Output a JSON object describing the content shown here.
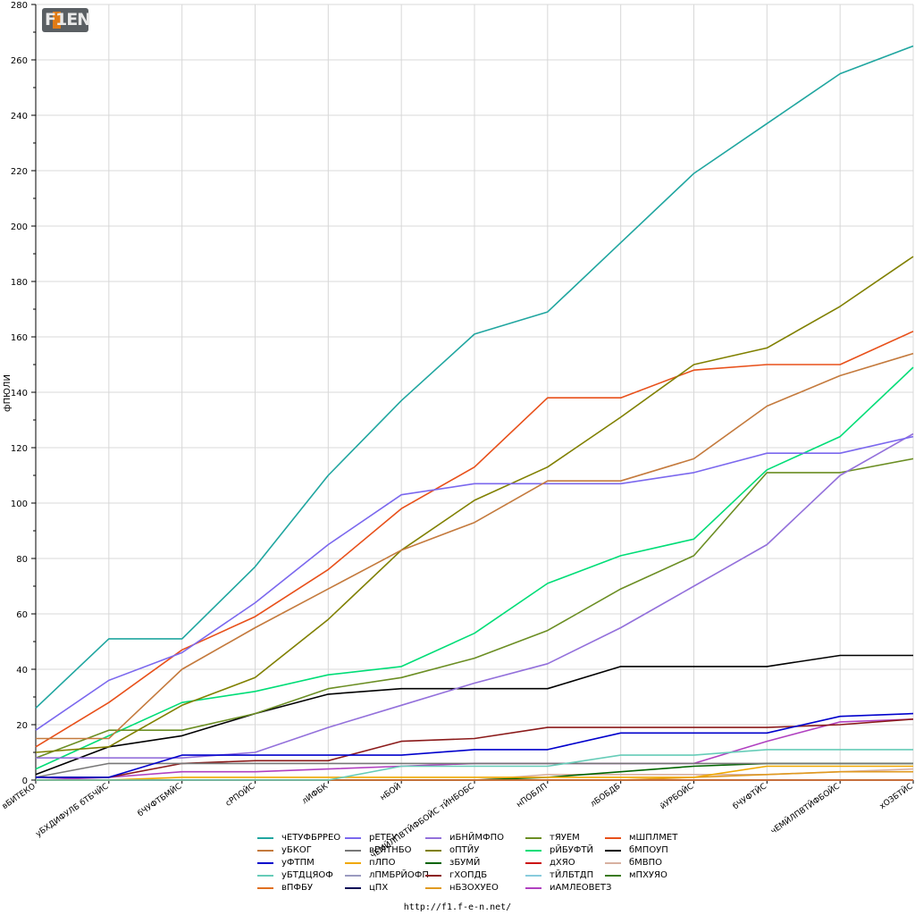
{
  "logo_text": "F1EN",
  "url": "http://f1.f-e-n.net/",
  "chart_data": {
    "type": "line",
    "title": "",
    "xlabel": "",
    "ylabel": "фПЮЛИ",
    "ylim": [
      0,
      280
    ],
    "yticks": [
      0,
      20,
      40,
      60,
      80,
      100,
      120,
      140,
      160,
      180,
      200,
      220,
      240,
      260,
      280
    ],
    "grid": true,
    "categories": [
      "вБИТЕКО",
      "уБХДИФУЛБ бТБЧЙС",
      "бЧУФТБМЙС",
      "сРПОЙС",
      "лИФБК",
      "нБОЙ",
      "чЕМЙЛПВТЙФБОЙС тЙНБОБС",
      "нПОБЛП",
      "лБОБДБ",
      "йУРБОЙС",
      "бЧУФТЙС",
      "чЕМЙЛПВТЙФБОЙС",
      "хОЗБТЙС"
    ],
    "legend_position": "bottom",
    "series": [
      {
        "name": "чЕТУФБРРЕО",
        "color": "#20a6a0",
        "values": [
          26,
          51,
          51,
          77,
          110,
          137,
          161,
          169,
          194,
          219,
          237,
          255,
          265
        ]
      },
      {
        "name": "уБКОГ",
        "color": "#c47a3d",
        "values": [
          15,
          15,
          40,
          55,
          69,
          83,
          93,
          108,
          108,
          116,
          135,
          146,
          154
        ]
      },
      {
        "name": "уФТПМ",
        "color": "#0000cc",
        "values": [
          1,
          1,
          9,
          9,
          9,
          9,
          11,
          11,
          17,
          17,
          17,
          23,
          24
        ]
      },
      {
        "name": "уБТДЦЯОФ",
        "color": "#66ccb8",
        "values": [
          0,
          0,
          0,
          0,
          0,
          5,
          5,
          5,
          9,
          9,
          11,
          11,
          11
        ]
      },
      {
        "name": "вПФБУ",
        "color": "#e07020",
        "values": [
          0,
          0,
          0,
          0,
          0,
          0,
          0,
          0,
          0,
          0,
          0,
          0,
          0
        ]
      },
      {
        "name": "рЕТЕУ",
        "color": "#7b68ee",
        "values": [
          18,
          36,
          46,
          64,
          85,
          103,
          107,
          107,
          107,
          111,
          118,
          118,
          124
        ]
      },
      {
        "name": "вЕЯТНБО",
        "color": "#777777",
        "values": [
          1,
          6,
          6,
          6,
          6,
          6,
          6,
          6,
          6,
          6,
          6,
          6,
          6
        ]
      },
      {
        "name": "пЛПО",
        "color": "#f0a800",
        "values": [
          0,
          0,
          1,
          1,
          1,
          1,
          1,
          1,
          1,
          1,
          5,
          5,
          5
        ]
      },
      {
        "name": "лПМБРЙОФП",
        "color": "#9a9ac0",
        "values": [
          0,
          0,
          0,
          0,
          0,
          0,
          0,
          0,
          0,
          0,
          0,
          0,
          0
        ]
      },
      {
        "name": "цПХ",
        "color": "#000055",
        "values": [
          0,
          0,
          0,
          0,
          0,
          0,
          0,
          0,
          0,
          0,
          0,
          0,
          0
        ]
      },
      {
        "name": "иБНЙМФПО",
        "color": "#9370db",
        "values": [
          8,
          8,
          8,
          10,
          19,
          27,
          35,
          42,
          55,
          70,
          85,
          110,
          125
        ]
      },
      {
        "name": "оПТЙУ",
        "color": "#808000",
        "values": [
          10,
          12,
          27,
          37,
          58,
          83,
          101,
          113,
          131,
          150,
          156,
          171,
          189
        ]
      },
      {
        "name": "зБУМЙ",
        "color": "#006400",
        "values": [
          0,
          0,
          0,
          0,
          0,
          0,
          0,
          1,
          3,
          5,
          6,
          6,
          6
        ]
      },
      {
        "name": "гХОПДБ",
        "color": "#8b1a1a",
        "values": [
          1,
          1,
          6,
          7,
          7,
          14,
          15,
          19,
          19,
          19,
          19,
          20,
          22
        ]
      },
      {
        "name": "нБЗОХУЕО",
        "color": "#e09a20",
        "values": [
          0,
          0,
          0,
          0,
          0,
          0,
          0,
          0,
          0,
          1,
          2,
          3,
          3
        ]
      },
      {
        "name": "тЯУЕМ",
        "color": "#6b8e23",
        "values": [
          8,
          18,
          18,
          24,
          33,
          37,
          44,
          54,
          69,
          81,
          111,
          111,
          116
        ]
      },
      {
        "name": "рЙБУФТЙ",
        "color": "#00dd77",
        "values": [
          4,
          16,
          28,
          32,
          38,
          41,
          53,
          71,
          81,
          87,
          112,
          124,
          149
        ]
      },
      {
        "name": "дХЯО",
        "color": "#cc1111",
        "values": [
          0,
          0,
          0,
          0,
          0,
          0,
          0,
          0,
          0,
          0,
          0,
          0,
          0
        ]
      },
      {
        "name": "тЙЛБТДП",
        "color": "#88ccdd",
        "values": [
          0,
          0,
          0,
          0,
          0,
          0,
          0,
          0,
          0,
          0,
          0,
          0,
          0
        ]
      },
      {
        "name": "иАМЛЕОВЕТЗ",
        "color": "#b040c0",
        "values": [
          0,
          1,
          3,
          3,
          4,
          5,
          6,
          6,
          6,
          6,
          14,
          21,
          22
        ]
      },
      {
        "name": "мШПЛМЕТ",
        "color": "#e8501a",
        "values": [
          12,
          28,
          47,
          59,
          76,
          98,
          113,
          138,
          138,
          148,
          150,
          150,
          162
        ]
      },
      {
        "name": "бМПОУП",
        "color": "#000000",
        "values": [
          2,
          12,
          16,
          24,
          31,
          33,
          33,
          33,
          41,
          41,
          41,
          45,
          45
        ]
      },
      {
        "name": "бМВПО",
        "color": "#d8b0a0",
        "values": [
          0,
          0,
          0,
          0,
          0,
          0,
          0,
          2,
          2,
          2,
          2,
          3,
          4
        ]
      },
      {
        "name": "мПХУЯО",
        "color": "#3a7a1a",
        "values": [
          0,
          0,
          0,
          0,
          0,
          0,
          0,
          0,
          0,
          0,
          0,
          0,
          0
        ]
      }
    ]
  }
}
